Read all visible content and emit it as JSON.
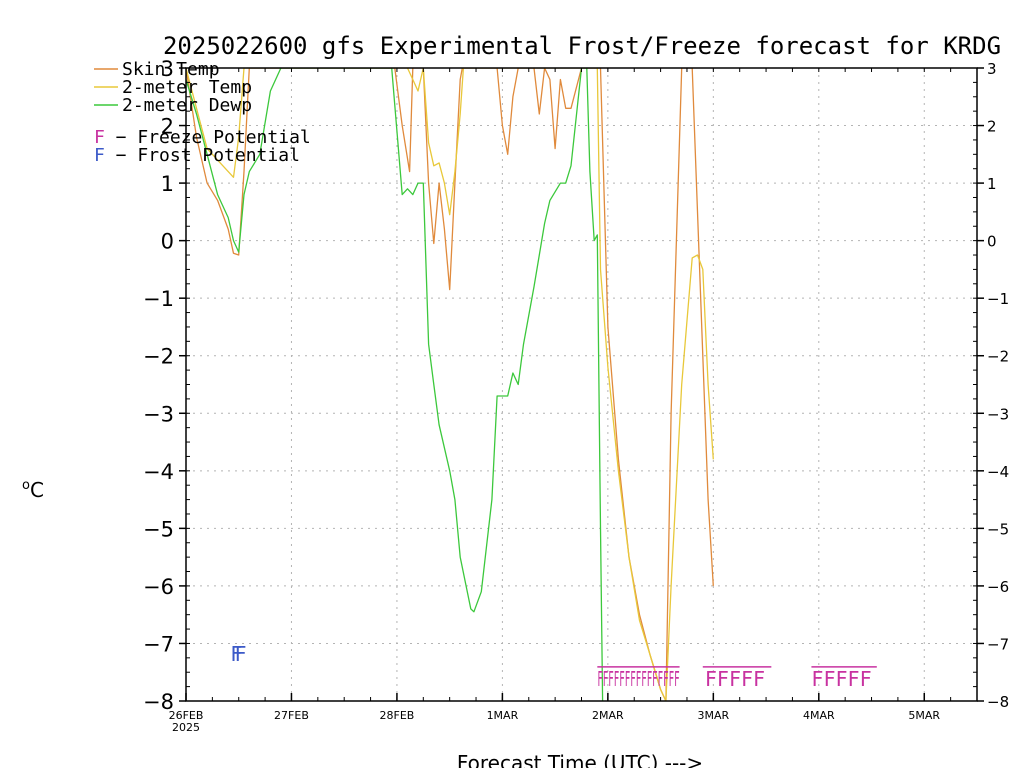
{
  "chart_data": {
    "type": "line",
    "title": "2025022600 gfs Experimental Frost/Freeze forecast for KRDG",
    "xlabel": "Forecast Time (UTC) --->",
    "ylabel": "oC",
    "ylim": [
      -8,
      3
    ],
    "yticks": [
      3,
      2,
      1,
      0,
      -1,
      -2,
      -3,
      -4,
      -5,
      -6,
      -7,
      -8
    ],
    "ytick_labels": [
      "3",
      "2",
      "1",
      "0",
      "−1",
      "−2",
      "−3",
      "−4",
      "−5",
      "−6",
      "−7",
      "−8"
    ],
    "xlim": [
      0,
      7.5
    ],
    "xticks": [
      {
        "pos": 0,
        "label": "26FEB",
        "sublabel": "2025"
      },
      {
        "pos": 1,
        "label": "27FEB"
      },
      {
        "pos": 2,
        "label": "28FEB"
      },
      {
        "pos": 3,
        "label": "1MAR"
      },
      {
        "pos": 4,
        "label": "2MAR"
      },
      {
        "pos": 5,
        "label": "3MAR"
      },
      {
        "pos": 6,
        "label": "4MAR"
      },
      {
        "pos": 7,
        "label": "5MAR"
      }
    ],
    "grid": true,
    "legend_placement": "top-left",
    "series": [
      {
        "name": "Skin Temp",
        "color": "#e08a3c",
        "x": [
          0.0,
          0.1,
          0.2,
          0.3,
          0.4,
          0.45,
          0.5,
          0.55,
          0.6,
          0.65,
          0.7,
          0.8,
          0.9,
          0.95,
          1.98,
          2.05,
          2.12,
          2.15,
          2.2,
          2.25,
          2.3,
          2.35,
          2.4,
          2.45,
          2.5,
          2.55,
          2.6,
          2.62,
          2.95,
          3.0,
          3.05,
          3.1,
          3.15,
          3.3,
          3.35,
          3.4,
          3.45,
          3.5,
          3.55,
          3.6,
          3.65,
          3.75,
          3.85,
          3.93,
          4.0,
          4.1,
          4.2,
          4.3,
          4.4,
          4.5,
          4.55,
          4.6,
          4.7,
          4.75,
          4.8,
          4.9,
          4.95,
          5.0
        ],
        "y": [
          3.0,
          1.8,
          1.0,
          0.7,
          0.2,
          -0.22,
          -0.25,
          1.2,
          3.0,
          3.0,
          3.0,
          3.0,
          3.0,
          3.0,
          3.0,
          2.0,
          1.2,
          3.0,
          3.0,
          3.0,
          1.0,
          -0.05,
          1.0,
          0.2,
          -0.85,
          1.0,
          2.8,
          3.0,
          3.0,
          2.0,
          1.5,
          2.5,
          3.0,
          3.0,
          2.2,
          3.0,
          2.8,
          1.6,
          2.8,
          2.3,
          2.3,
          3.0,
          3.0,
          3.0,
          -1.5,
          -3.8,
          -5.5,
          -6.5,
          -7.2,
          -7.8,
          -8.0,
          -3.0,
          3.0,
          3.0,
          3.0,
          -2.0,
          -4.5,
          -6.0
        ]
      },
      {
        "name": "2-meter Temp",
        "color": "#e8c83a",
        "x": [
          0.0,
          0.1,
          0.2,
          0.3,
          0.4,
          0.45,
          0.5,
          0.55,
          0.6,
          0.65,
          0.8,
          0.9,
          0.95,
          2.1,
          2.15,
          2.2,
          2.25,
          2.3,
          2.35,
          2.4,
          2.45,
          2.5,
          2.55,
          2.6,
          2.63,
          3.9,
          3.93,
          4.0,
          4.1,
          4.2,
          4.3,
          4.4,
          4.5,
          4.55,
          4.6,
          4.7,
          4.8,
          4.85,
          4.9,
          4.95,
          5.0
        ],
        "y": [
          3.0,
          2.3,
          1.6,
          1.4,
          1.2,
          1.1,
          1.8,
          3.0,
          3.0,
          3.0,
          3.0,
          3.0,
          3.0,
          3.0,
          2.8,
          2.6,
          3.0,
          1.7,
          1.3,
          1.35,
          1.0,
          0.45,
          1.2,
          2.2,
          3.0,
          3.0,
          -0.5,
          -2.2,
          -4.0,
          -5.5,
          -6.6,
          -7.2,
          -7.8,
          -8.0,
          -6.0,
          -2.5,
          -0.3,
          -0.25,
          -0.5,
          -2.5,
          -3.8
        ]
      },
      {
        "name": "2-meter Dewp",
        "color": "#3cc83c",
        "x": [
          0.0,
          0.1,
          0.2,
          0.3,
          0.4,
          0.45,
          0.5,
          0.55,
          0.6,
          0.7,
          0.8,
          0.9,
          0.95,
          1.95,
          2.05,
          2.1,
          2.15,
          2.2,
          2.25,
          2.3,
          2.35,
          2.4,
          2.5,
          2.55,
          2.6,
          2.7,
          2.73,
          2.8,
          2.9,
          2.95,
          3.0,
          3.05,
          3.1,
          3.15,
          3.2,
          3.3,
          3.4,
          3.45,
          3.55,
          3.6,
          3.65,
          3.75,
          3.8,
          3.83,
          3.87,
          3.9,
          3.93,
          3.95
        ],
        "y": [
          2.8,
          2.2,
          1.5,
          0.8,
          0.4,
          0.0,
          -0.2,
          0.8,
          1.2,
          1.5,
          2.6,
          3.0,
          3.0,
          3.0,
          0.8,
          0.9,
          0.8,
          1.0,
          1.0,
          -1.8,
          -2.5,
          -3.2,
          -4.0,
          -4.5,
          -5.5,
          -6.4,
          -6.45,
          -6.1,
          -4.5,
          -2.7,
          -2.7,
          -2.7,
          -2.3,
          -2.5,
          -1.8,
          -0.8,
          0.3,
          0.7,
          1.0,
          1.0,
          1.3,
          3.0,
          3.0,
          1.2,
          0.0,
          0.1,
          -5.0,
          -8.0
        ]
      }
    ],
    "freeze_label": "F − Freeze Potential",
    "frost_label": "F − Frost Potential",
    "freeze_color": "#c832a0",
    "frost_color": "#3c5ac8",
    "frost_markers": [
      {
        "text": "F",
        "x": 0.42,
        "y": -7.15
      },
      {
        "text": "F",
        "x": 0.46,
        "y": -7.15
      }
    ],
    "freeze_markers": [
      {
        "text": "FFFFFFFFFFFFFFF",
        "x": 3.9,
        "y": -7.58,
        "packed": true,
        "end_x": 4.68
      },
      {
        "text": "FFFFF",
        "x": 4.92,
        "y": -7.58,
        "packed": false
      },
      {
        "text": "FFFFF",
        "x": 5.93,
        "y": -7.58,
        "packed": false
      }
    ],
    "freeze_hbar_segments": [
      [
        3.9,
        4.68
      ],
      [
        4.9,
        5.55
      ],
      [
        5.93,
        6.55
      ]
    ]
  }
}
